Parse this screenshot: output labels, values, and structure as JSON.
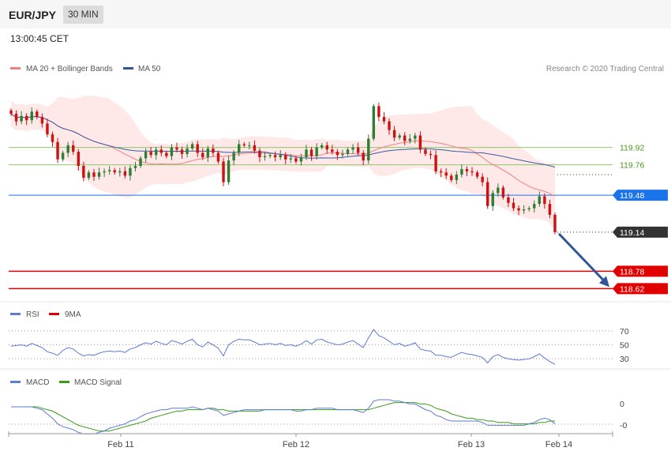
{
  "header": {
    "symbol": "EUR/JPY",
    "timeframe": "30 MIN",
    "time": "13:00:45 CET"
  },
  "legend": {
    "main": [
      {
        "label": "MA 20 + Bollinger Bands",
        "color": "#f08080"
      },
      {
        "label": "MA 50",
        "color": "#2f5597"
      }
    ],
    "rsi": [
      {
        "label": "RSI",
        "color": "#5b7bd5"
      },
      {
        "label": "9MA",
        "color": "#e00000"
      }
    ],
    "macd": [
      {
        "label": "MACD",
        "color": "#5b7bd5"
      },
      {
        "label": "MACD Signal",
        "color": "#3a9a1a"
      }
    ]
  },
  "credit": "Research © 2020 Trading Central",
  "colors": {
    "up": "#2e7d32",
    "down": "#cc1111",
    "ma20": "#f08080",
    "ma50": "#3b5ba0",
    "band": "#fde0e0",
    "arrow": "#2f5597"
  },
  "chart_data": {
    "type": "candlestick",
    "x_labels": [
      "Feb 11",
      "Feb 12",
      "Feb 13",
      "Feb 14"
    ],
    "price_range": [
      118.55,
      120.55
    ],
    "levels": [
      {
        "value": "119.92",
        "kind": "resistance",
        "color": "#8ec86a"
      },
      {
        "value": "119.76",
        "kind": "resistance",
        "color": "#8ec86a"
      },
      {
        "value": "119.48",
        "kind": "pivot",
        "color": "#1a73e8"
      },
      {
        "value": "119.14",
        "kind": "last",
        "color": "#333333"
      },
      {
        "value": "118.78",
        "kind": "support",
        "color": "#e00000"
      },
      {
        "value": "118.62",
        "kind": "support",
        "color": "#e00000"
      }
    ],
    "rsi_levels": [
      "70",
      "50",
      "30"
    ],
    "macd_levels": [
      "0",
      "-0"
    ],
    "close": [
      120.23,
      120.16,
      120.21,
      120.17,
      120.25,
      120.2,
      120.14,
      120.04,
      119.97,
      119.81,
      119.87,
      119.94,
      119.88,
      119.75,
      119.64,
      119.69,
      119.65,
      119.69,
      119.7,
      119.71,
      119.69,
      119.7,
      119.66,
      119.73,
      119.75,
      119.82,
      119.88,
      119.85,
      119.9,
      119.87,
      119.84,
      119.92,
      119.9,
      119.86,
      119.91,
      119.95,
      119.87,
      119.83,
      119.91,
      119.87,
      119.79,
      119.6,
      119.8,
      119.87,
      119.95,
      119.94,
      119.94,
      119.89,
      119.83,
      119.84,
      119.85,
      119.83,
      119.85,
      119.81,
      119.82,
      119.79,
      119.83,
      119.9,
      119.84,
      119.92,
      119.94,
      119.9,
      119.88,
      119.85,
      119.86,
      119.9,
      119.92,
      119.87,
      119.8,
      120.0,
      120.3,
      120.2,
      120.16,
      120.08,
      120.01,
      120.03,
      119.98,
      120.0,
      120.03,
      119.9,
      119.86,
      119.85,
      119.7,
      119.69,
      119.66,
      119.62,
      119.67,
      119.72,
      119.7,
      119.69,
      119.65,
      119.6,
      119.38,
      119.5,
      119.55,
      119.46,
      119.41,
      119.36,
      119.34,
      119.35,
      119.36,
      119.4,
      119.47,
      119.4,
      119.3,
      119.14
    ],
    "rsi": [
      48,
      49,
      50,
      48,
      52,
      49,
      46,
      40,
      38,
      35,
      42,
      46,
      44,
      38,
      34,
      36,
      35,
      38,
      40,
      41,
      40,
      41,
      39,
      44,
      46,
      50,
      53,
      51,
      55,
      52,
      50,
      56,
      54,
      51,
      55,
      58,
      50,
      47,
      54,
      50,
      45,
      34,
      50,
      55,
      58,
      57,
      57,
      54,
      50,
      51,
      52,
      50,
      52,
      49,
      50,
      48,
      51,
      56,
      51,
      57,
      58,
      54,
      52,
      50,
      51,
      54,
      56,
      51,
      46,
      60,
      72,
      63,
      60,
      55,
      50,
      52,
      48,
      50,
      53,
      44,
      42,
      41,
      35,
      35,
      33,
      32,
      36,
      39,
      37,
      36,
      34,
      32,
      24,
      33,
      36,
      32,
      30,
      29,
      28,
      29,
      30,
      33,
      37,
      31,
      26,
      22
    ],
    "macd": [
      0.05,
      0.05,
      0.05,
      0.05,
      0.05,
      0.04,
      0.03,
      0.0,
      -0.03,
      -0.07,
      -0.09,
      -0.1,
      -0.11,
      -0.13,
      -0.14,
      -0.14,
      -0.14,
      -0.13,
      -0.12,
      -0.1,
      -0.09,
      -0.08,
      -0.07,
      -0.05,
      -0.04,
      -0.02,
      0.0,
      0.01,
      0.02,
      0.03,
      0.03,
      0.04,
      0.04,
      0.04,
      0.04,
      0.05,
      0.04,
      0.03,
      0.04,
      0.03,
      0.02,
      -0.01,
      0.0,
      0.01,
      0.02,
      0.03,
      0.03,
      0.03,
      0.03,
      0.03,
      0.03,
      0.03,
      0.03,
      0.03,
      0.03,
      0.02,
      0.02,
      0.03,
      0.03,
      0.04,
      0.04,
      0.04,
      0.04,
      0.03,
      0.03,
      0.03,
      0.03,
      0.02,
      0.01,
      0.04,
      0.09,
      0.1,
      0.1,
      0.1,
      0.09,
      0.09,
      0.08,
      0.07,
      0.07,
      0.05,
      0.03,
      0.02,
      -0.01,
      -0.02,
      -0.04,
      -0.05,
      -0.05,
      -0.05,
      -0.05,
      -0.05,
      -0.05,
      -0.06,
      -0.08,
      -0.08,
      -0.08,
      -0.08,
      -0.08,
      -0.08,
      -0.08,
      -0.08,
      -0.07,
      -0.06,
      -0.04,
      -0.03,
      -0.04,
      -0.07
    ],
    "macd_signal": [
      0.05,
      0.05,
      0.05,
      0.05,
      0.05,
      0.05,
      0.04,
      0.03,
      0.02,
      0.0,
      -0.02,
      -0.04,
      -0.06,
      -0.08,
      -0.09,
      -0.1,
      -0.11,
      -0.12,
      -0.12,
      -0.12,
      -0.11,
      -0.1,
      -0.09,
      -0.08,
      -0.07,
      -0.06,
      -0.05,
      -0.03,
      -0.02,
      -0.01,
      0.0,
      0.01,
      0.02,
      0.02,
      0.03,
      0.03,
      0.03,
      0.03,
      0.04,
      0.04,
      0.03,
      0.03,
      0.02,
      0.02,
      0.02,
      0.02,
      0.02,
      0.02,
      0.02,
      0.03,
      0.03,
      0.03,
      0.03,
      0.03,
      0.03,
      0.03,
      0.03,
      0.03,
      0.03,
      0.03,
      0.03,
      0.03,
      0.03,
      0.03,
      0.03,
      0.03,
      0.03,
      0.03,
      0.03,
      0.03,
      0.04,
      0.05,
      0.06,
      0.07,
      0.08,
      0.08,
      0.08,
      0.08,
      0.08,
      0.07,
      0.07,
      0.06,
      0.04,
      0.03,
      0.02,
      0.0,
      -0.01,
      -0.02,
      -0.03,
      -0.03,
      -0.04,
      -0.04,
      -0.05,
      -0.05,
      -0.06,
      -0.06,
      -0.06,
      -0.07,
      -0.07,
      -0.07,
      -0.07,
      -0.07,
      -0.06,
      -0.06,
      -0.05,
      -0.05
    ]
  }
}
